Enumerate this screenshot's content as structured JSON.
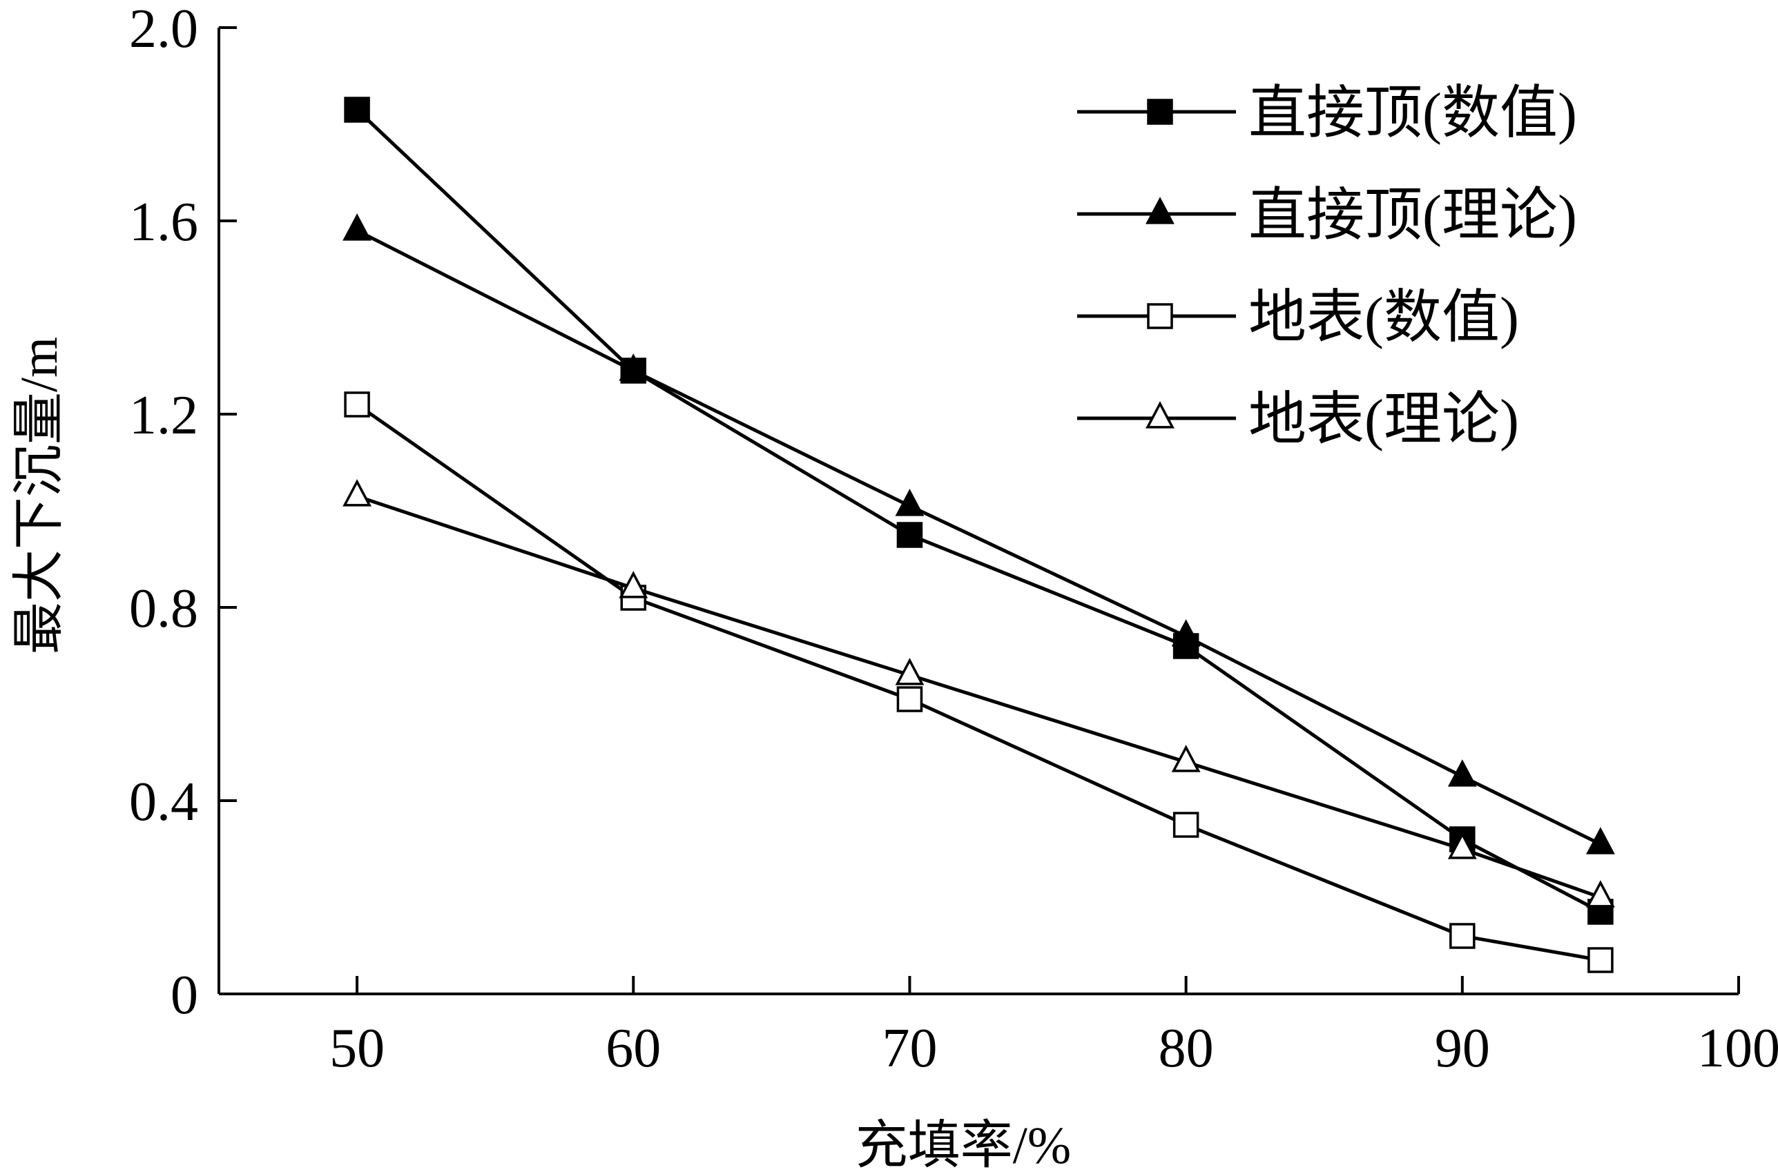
{
  "chart_data": {
    "type": "line",
    "title": "",
    "xlabel": "充填率/%",
    "ylabel": "最大下沉量/m",
    "xlim": [
      45,
      100
    ],
    "ylim": [
      0,
      2.0
    ],
    "x_ticks": [
      50,
      60,
      70,
      80,
      90,
      100
    ],
    "y_ticks": [
      0,
      0.4,
      0.8,
      1.2,
      1.6,
      2.0
    ],
    "x_tick_labels": [
      "50",
      "60",
      "70",
      "80",
      "90",
      "100"
    ],
    "y_tick_labels": [
      "0",
      "0.4",
      "0.8",
      "1.2",
      "1.6",
      "2.0"
    ],
    "grid": false,
    "legend_position": "top-right",
    "x": [
      50,
      60,
      70,
      80,
      90,
      95
    ],
    "series": [
      {
        "name": "直接顶(数值)",
        "marker": "square-filled",
        "values": [
          1.83,
          1.29,
          0.95,
          0.72,
          0.32,
          0.17
        ]
      },
      {
        "name": "直接顶(理论)",
        "marker": "triangle-filled",
        "values": [
          1.58,
          1.29,
          1.01,
          0.74,
          0.45,
          0.31
        ]
      },
      {
        "name": "地表(数值)",
        "marker": "square-open",
        "values": [
          1.22,
          0.82,
          0.61,
          0.35,
          0.12,
          0.07
        ]
      },
      {
        "name": "地表(理论)",
        "marker": "triangle-open",
        "values": [
          1.03,
          0.84,
          0.66,
          0.48,
          0.3,
          0.2
        ]
      }
    ],
    "colors": {
      "line": "#000000",
      "background": "#ffffff"
    }
  }
}
